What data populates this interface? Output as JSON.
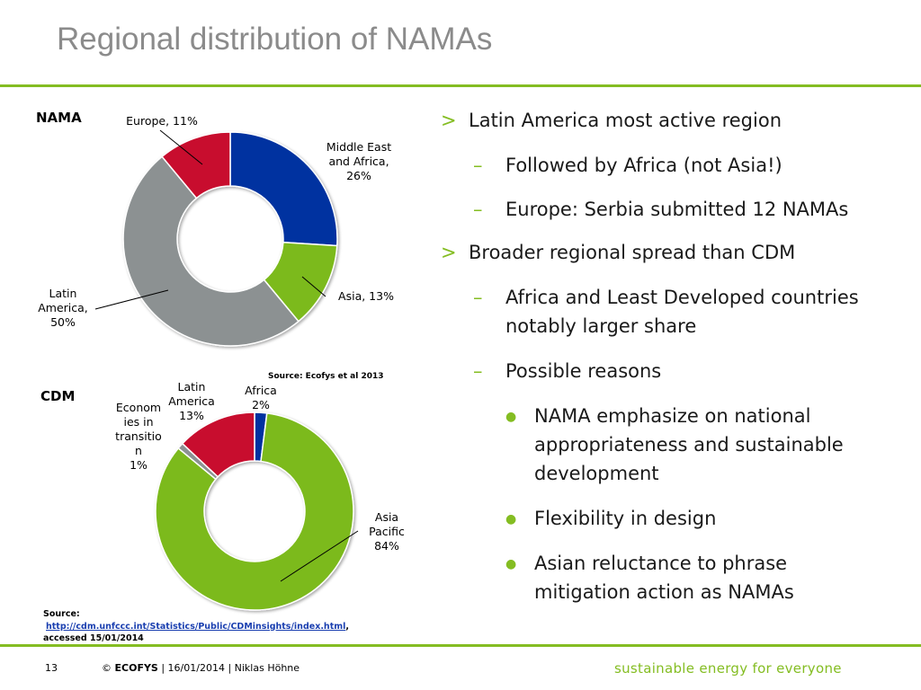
{
  "slide": {
    "title": "Regional distribution of NAMAs",
    "brand_color": "#84bd22"
  },
  "chart_data": [
    {
      "type": "pie",
      "variant": "donut",
      "title": "NAMA",
      "categories": [
        "Middle East and Africa",
        "Asia",
        "Latin America",
        "Europe"
      ],
      "values": [
        26,
        13,
        50,
        11
      ],
      "unit": "%",
      "colors": [
        "#0033a0",
        "#7cba1c",
        "#8c9192",
        "#c8102e"
      ],
      "labels": [
        [
          "Middle East",
          "and Africa,",
          "26%"
        ],
        [
          "Asia, 13%"
        ],
        [
          "Latin",
          "America,",
          "50%"
        ],
        [
          "Europe, 11%"
        ]
      ]
    },
    {
      "type": "pie",
      "variant": "donut",
      "title": "CDM",
      "categories": [
        "Africa",
        "Asia Pacific",
        "Economies in transition",
        "Latin America"
      ],
      "values": [
        2,
        84,
        1,
        13
      ],
      "unit": "%",
      "colors": [
        "#0033a0",
        "#7cba1c",
        "#8c9192",
        "#c8102e"
      ],
      "labels": [
        [
          "Africa",
          "2%"
        ],
        [
          "Asia",
          "Pacific",
          "84%"
        ],
        [
          "Econom",
          "ies in",
          "transitio",
          "n",
          "1%"
        ],
        [
          "Latin",
          "America",
          "13%"
        ]
      ]
    }
  ],
  "nama_source": "Source: Ecofys et al 2013",
  "cdm_source": {
    "prefix": "Source:",
    "link": "http://cdm.unfccc.int/Statistics/Public/CDMinsights/index.html",
    "suffix": ",",
    "accessed": "accessed 15/01/2014"
  },
  "bullets": [
    {
      "level": 1,
      "marker": ">",
      "text": "Latin America most active region"
    },
    {
      "level": 2,
      "marker": "–",
      "text": "Followed by Africa (not Asia!)"
    },
    {
      "level": 2,
      "marker": "–",
      "text": "Europe: Serbia submitted 12 NAMAs"
    },
    {
      "level": 1,
      "marker": ">",
      "text": "Broader regional spread than CDM"
    },
    {
      "level": 2,
      "marker": "–",
      "text": "Africa and Least Developed countries notably larger share"
    },
    {
      "level": 2,
      "marker": "–",
      "text": "Possible reasons"
    },
    {
      "level": 3,
      "marker": "●",
      "text": "NAMA emphasize on national appropriateness and sustainable development"
    },
    {
      "level": 3,
      "marker": "●",
      "text": "Flexibility in design"
    },
    {
      "level": 3,
      "marker": "●",
      "text": "Asian reluctance to phrase mitigation action as NAMAs"
    }
  ],
  "footer": {
    "page_number": "13",
    "copyright": "©",
    "brand": "ECOFYS",
    "rest": "| 16/01/2014 | Niklas Höhne",
    "tagline": "sustainable energy for everyone"
  }
}
